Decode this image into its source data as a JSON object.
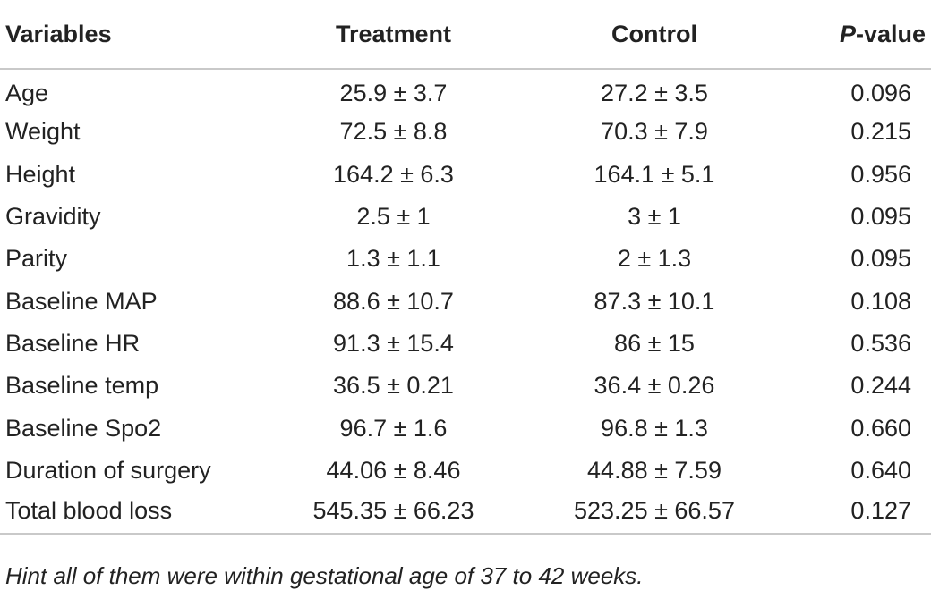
{
  "table": {
    "headers": {
      "variables": "Variables",
      "treatment": "Treatment",
      "control": "Control",
      "pvalue_p": "P",
      "pvalue_rest": "-value"
    },
    "rows": [
      {
        "variable": "Age",
        "treatment": "25.9 ± 3.7",
        "control": "27.2 ± 3.5",
        "pvalue": "0.096"
      },
      {
        "variable": "Weight",
        "treatment": "72.5 ± 8.8",
        "control": "70.3 ± 7.9",
        "pvalue": "0.215"
      },
      {
        "variable": "Height",
        "treatment": "164.2 ± 6.3",
        "control": "164.1 ± 5.1",
        "pvalue": "0.956"
      },
      {
        "variable": "Gravidity",
        "treatment": "2.5 ± 1",
        "control": "3 ± 1",
        "pvalue": "0.095"
      },
      {
        "variable": "Parity",
        "treatment": "1.3 ± 1.1",
        "control": "2 ± 1.3",
        "pvalue": "0.095"
      },
      {
        "variable": "Baseline MAP",
        "treatment": "88.6 ± 10.7",
        "control": "87.3 ± 10.1",
        "pvalue": "0.108"
      },
      {
        "variable": "Baseline HR",
        "treatment": "91.3 ± 15.4",
        "control": "86 ± 15",
        "pvalue": "0.536"
      },
      {
        "variable": "Baseline temp",
        "treatment": "36.5 ± 0.21",
        "control": "36.4 ± 0.26",
        "pvalue": "0.244"
      },
      {
        "variable": "Baseline Spo2",
        "treatment": "96.7 ± 1.6",
        "control": "96.8 ± 1.3",
        "pvalue": "0.660"
      },
      {
        "variable": "Duration of surgery",
        "treatment": "44.06 ± 8.46",
        "control": "44.88 ± 7.59",
        "pvalue": "0.640"
      },
      {
        "variable": "Total blood loss",
        "treatment": "545.35 ± 66.23",
        "control": "523.25 ± 66.57",
        "pvalue": "0.127"
      }
    ]
  },
  "footnote": "Hint all of them were within gestational age of 37 to 42 weeks."
}
